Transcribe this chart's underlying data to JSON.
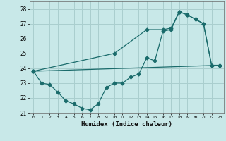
{
  "xlabel": "Humidex (Indice chaleur)",
  "xlim": [
    -0.5,
    23.5
  ],
  "ylim": [
    21,
    28.5
  ],
  "yticks": [
    21,
    22,
    23,
    24,
    25,
    26,
    27,
    28
  ],
  "xticks": [
    0,
    1,
    2,
    3,
    4,
    5,
    6,
    7,
    8,
    9,
    10,
    11,
    12,
    13,
    14,
    15,
    16,
    17,
    18,
    19,
    20,
    21,
    22,
    23
  ],
  "bg_color": "#c8e8e8",
  "grid_color": "#aacece",
  "line_color": "#1a6b6b",
  "line1_x": [
    0,
    1,
    2,
    3,
    4,
    5,
    6,
    7,
    8,
    9,
    10,
    11,
    12,
    13,
    14,
    15,
    16,
    17,
    18,
    19,
    20,
    21,
    22,
    23
  ],
  "line1_y": [
    23.8,
    23.0,
    22.9,
    22.4,
    21.8,
    21.6,
    21.3,
    21.2,
    21.6,
    22.7,
    23.0,
    23.0,
    23.4,
    23.6,
    24.7,
    24.5,
    26.5,
    26.6,
    27.8,
    27.6,
    27.3,
    27.0,
    24.2,
    24.2
  ],
  "line2_x": [
    0,
    23
  ],
  "line2_y": [
    23.8,
    24.2
  ],
  "line3_x": [
    0,
    10,
    14,
    16,
    17,
    18,
    19,
    20,
    21,
    22,
    23
  ],
  "line3_y": [
    23.8,
    25.0,
    26.6,
    26.6,
    26.7,
    27.8,
    27.6,
    27.3,
    27.0,
    24.2,
    24.2
  ]
}
